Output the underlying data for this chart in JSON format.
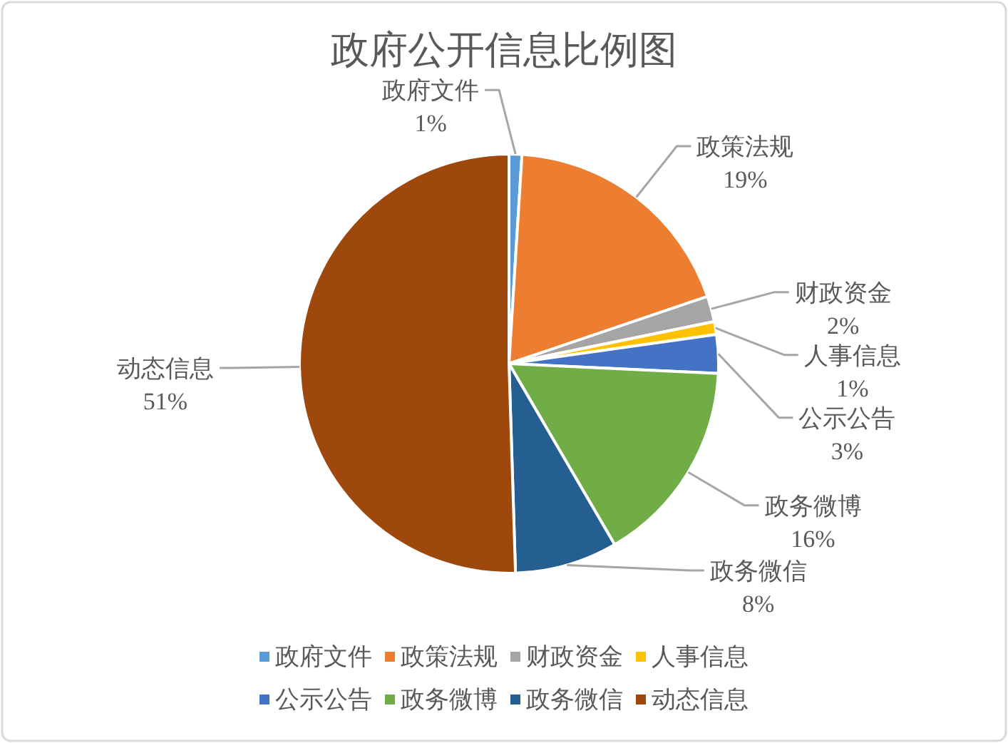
{
  "chart_data": {
    "type": "pie",
    "title": "政府公开信息比例图",
    "categories": [
      "政府文件",
      "政策法规",
      "财政资金",
      "人事信息",
      "公示公告",
      "政务微博",
      "政务微信",
      "动态信息"
    ],
    "values": [
      1,
      19,
      2,
      1,
      3,
      16,
      8,
      51
    ],
    "value_labels": [
      "1%",
      "19%",
      "2%",
      "1%",
      "3%",
      "16%",
      "8%",
      "51%"
    ],
    "colors": [
      "#5b9bd5",
      "#ed7d31",
      "#a5a5a5",
      "#ffc000",
      "#4472c4",
      "#70ad47",
      "#255e91",
      "#9e480e"
    ],
    "legend": "bottom"
  }
}
